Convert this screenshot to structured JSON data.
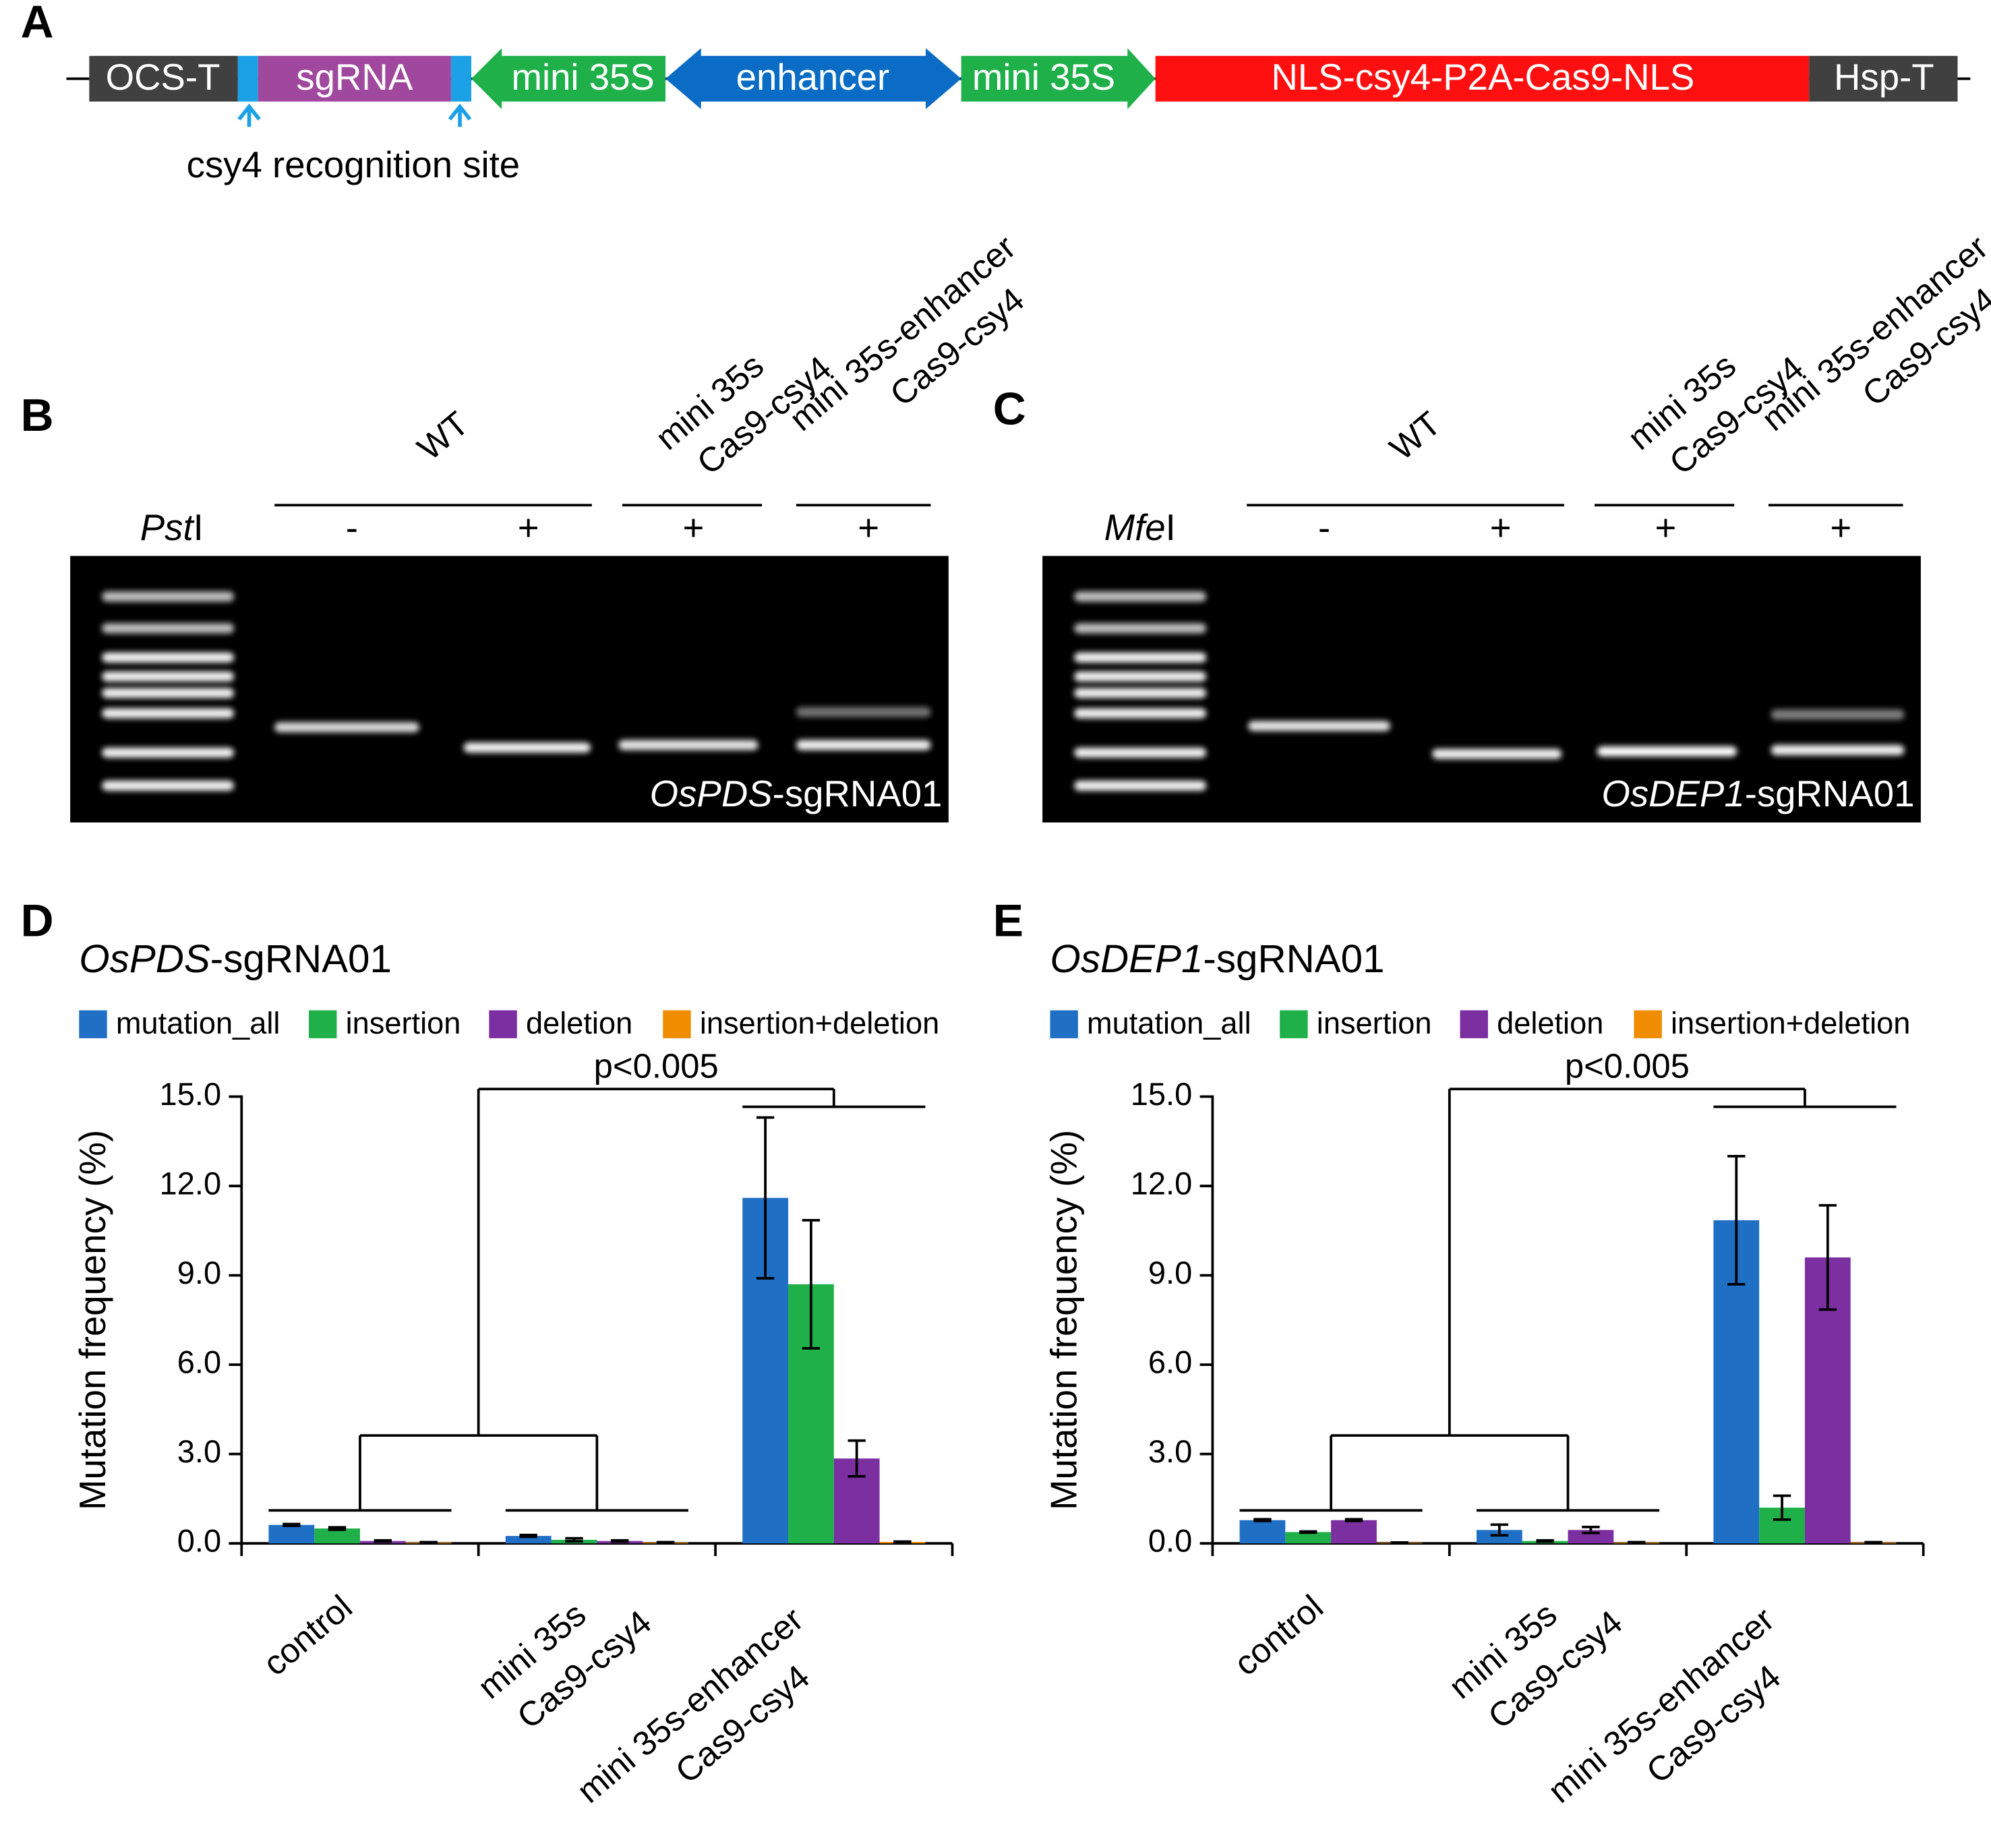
{
  "panel_labels": [
    "A",
    "B",
    "C",
    "D",
    "E"
  ],
  "construct": {
    "elements": [
      "OCS-T",
      "sgRNA",
      "mini 35S",
      "enhancer",
      "mini 35S",
      "NLS-csy4-P2A-Cas9-NLS",
      "Hsp-T"
    ],
    "annotation": "csy4 recognition site"
  },
  "gels": [
    {
      "enzyme": [
        "Pst",
        "I"
      ],
      "groups": [
        [
          "WT"
        ],
        [
          "mini 35s",
          "Cas9-csy4"
        ],
        [
          "mini 35s-enhancer",
          "Cas9-csy4"
        ]
      ],
      "lanes": [
        "-",
        "+",
        "+",
        "+"
      ],
      "label": [
        "OsPDS",
        "-sgRNA01"
      ]
    },
    {
      "enzyme": [
        "Mfe",
        "I"
      ],
      "groups": [
        [
          "WT"
        ],
        [
          "mini 35s",
          "Cas9-csy4"
        ],
        [
          "mini 35s-enhancer",
          "Cas9-csy4"
        ]
      ],
      "lanes": [
        "-",
        "+",
        "+",
        "+"
      ],
      "label": [
        "OsDEP1",
        "-sgRNA01"
      ]
    }
  ],
  "chart_data": [
    {
      "type": "bar",
      "title": [
        "OsPDS",
        "-sgRNA01"
      ],
      "y_label": "Mutation frequency (%)",
      "annotation": "p<0.005",
      "categories": [
        [
          "control"
        ],
        [
          "mini 35s",
          "Cas9-csy4"
        ],
        [
          "mini 35s-enhancer",
          "Cas9-csy4"
        ]
      ],
      "series": [
        {
          "name": "mutation_all",
          "color": "#1f6fc5",
          "values": [
            0.62,
            0.25,
            11.6
          ],
          "errors": [
            0.03,
            0.03,
            2.7
          ]
        },
        {
          "name": "insertion",
          "color": "#1fb04a",
          "values": [
            0.5,
            0.12,
            8.7
          ],
          "errors": [
            0.04,
            0.05,
            2.15
          ]
        },
        {
          "name": "deletion",
          "color": "#7b2fa0",
          "values": [
            0.08,
            0.08,
            2.85
          ],
          "errors": [
            0.02,
            0.02,
            0.6
          ]
        },
        {
          "name": "insertion+deletion",
          "color": "#f08c00",
          "values": [
            0.03,
            0.03,
            0.05
          ],
          "errors": [
            0.01,
            0.01,
            0.01
          ]
        }
      ],
      "ylim": [
        0,
        15
      ],
      "yticks": [
        {
          "value": 0,
          "label": "0.0"
        },
        {
          "value": 3,
          "label": "3.0"
        },
        {
          "value": 6,
          "label": "6.0"
        },
        {
          "value": 9,
          "label": "9.0"
        },
        {
          "value": 12,
          "label": "12.0"
        },
        {
          "value": 15,
          "label": "15.0"
        }
      ]
    },
    {
      "type": "bar",
      "title": [
        "OsDEP1",
        "-sgRNA01"
      ],
      "y_label": "Mutation frequency (%)",
      "annotation": "p<0.005",
      "categories": [
        [
          "control"
        ],
        [
          "mini 35s",
          "Cas9-csy4"
        ],
        [
          "mini 35s-enhancer",
          "Cas9-csy4"
        ]
      ],
      "series": [
        {
          "name": "mutation_all",
          "color": "#1f6fc5",
          "values": [
            0.78,
            0.45,
            10.85
          ],
          "errors": [
            0.03,
            0.18,
            2.15
          ]
        },
        {
          "name": "insertion",
          "color": "#1fb04a",
          "values": [
            0.38,
            0.08,
            1.2
          ],
          "errors": [
            0.02,
            0.02,
            0.4
          ]
        },
        {
          "name": "deletion",
          "color": "#7b2fa0",
          "values": [
            0.78,
            0.45,
            9.6
          ],
          "errors": [
            0.03,
            0.1,
            1.75
          ]
        },
        {
          "name": "insertion+deletion",
          "color": "#f08c00",
          "values": [
            0.02,
            0.03,
            0.03
          ],
          "errors": [
            0.01,
            0.01,
            0.01
          ]
        }
      ],
      "ylim": [
        0,
        15
      ],
      "yticks": [
        {
          "value": 0,
          "label": "0.0"
        },
        {
          "value": 3,
          "label": "3.0"
        },
        {
          "value": 6,
          "label": "6.0"
        },
        {
          "value": 9,
          "label": "9.0"
        },
        {
          "value": 12,
          "label": "12.0"
        },
        {
          "value": 15,
          "label": "15.0"
        }
      ]
    }
  ]
}
